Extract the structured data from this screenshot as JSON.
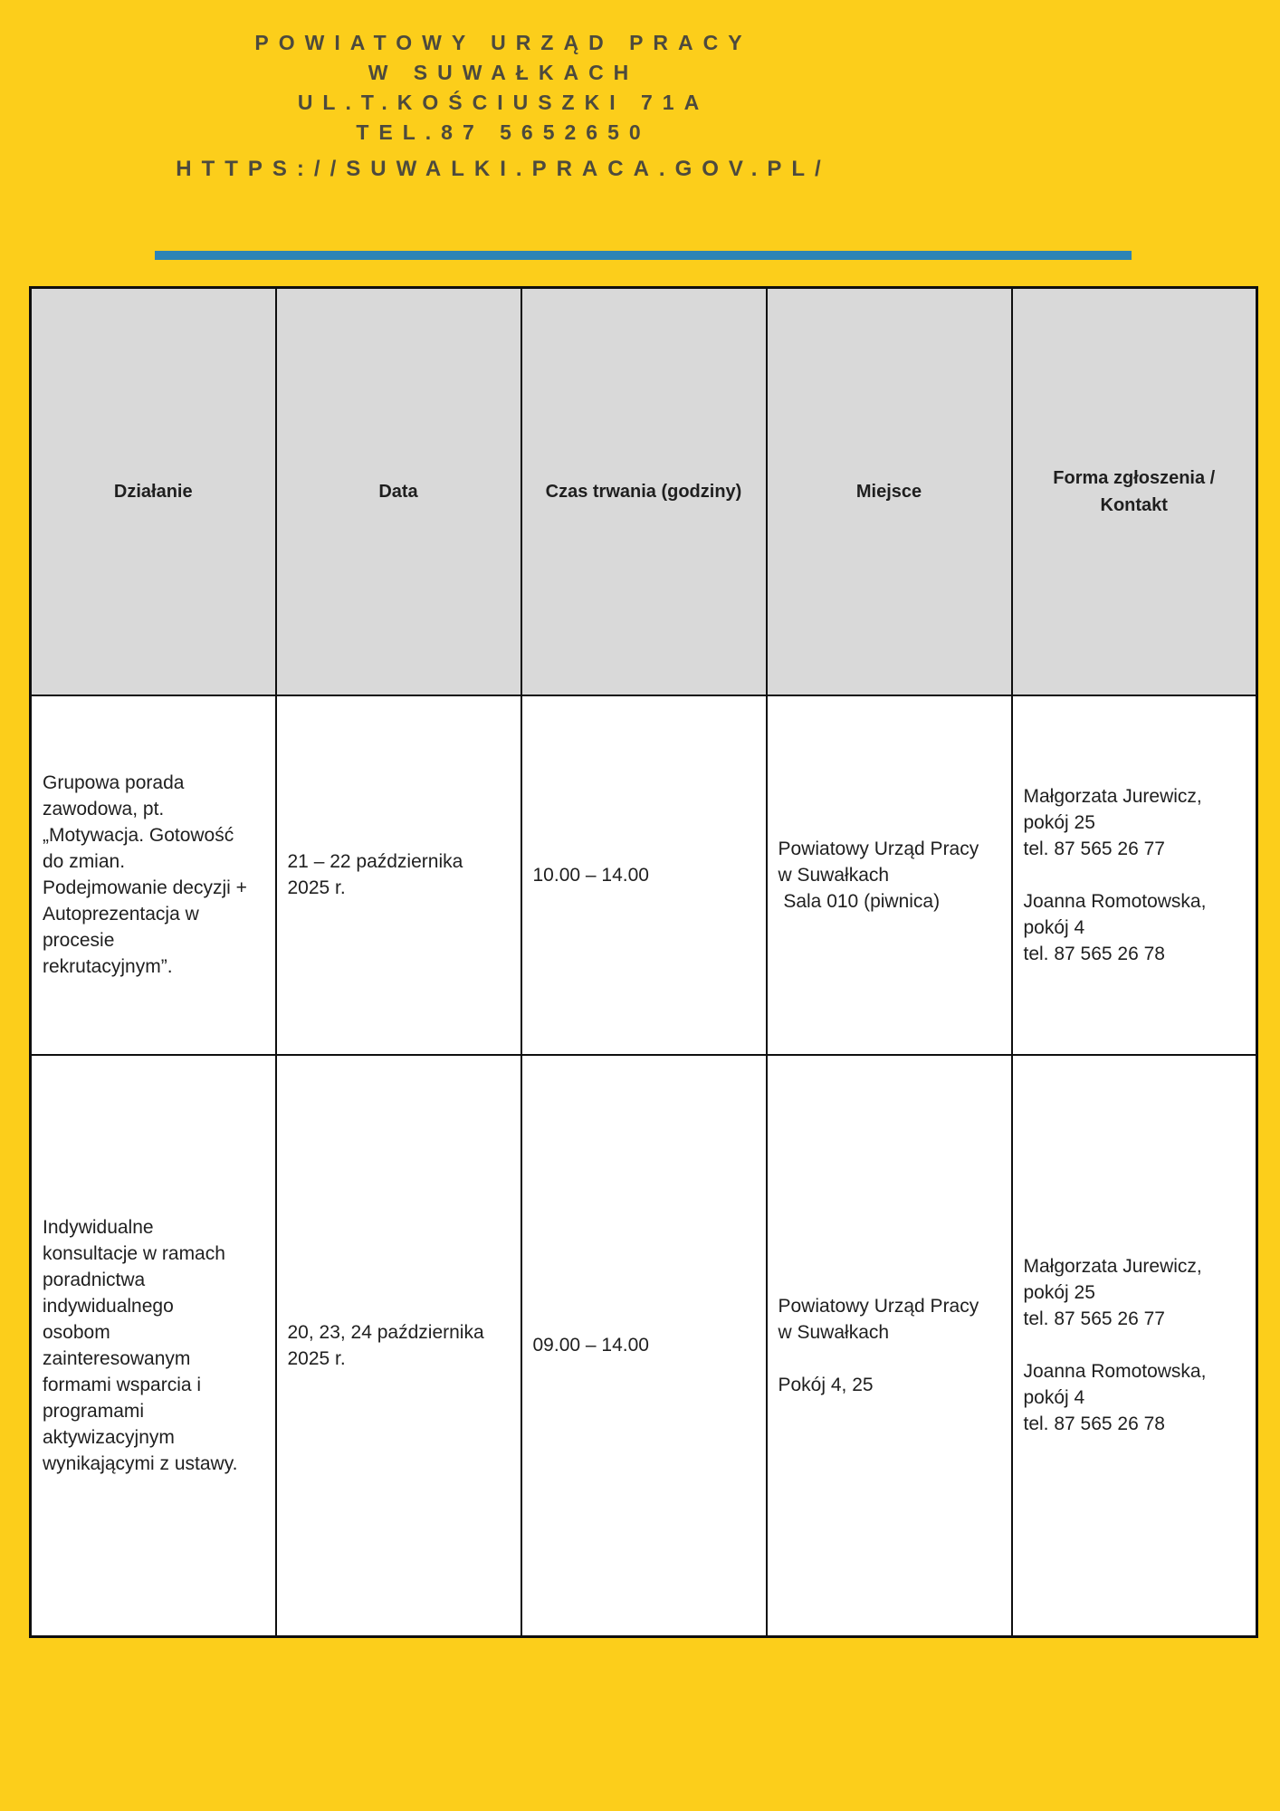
{
  "colors": {
    "background": "#fcce1b",
    "accent_bar": "#2d84b5",
    "table_header_bg": "#d9d9d9",
    "table_border": "#0f0f0f",
    "header_text": "#4d4a3d",
    "body_text": "#1f1f1f"
  },
  "header": {
    "org_line1": "POWIATOWY URZĄD PRACY",
    "org_line2": "W SUWAŁKACH",
    "address": "UL.T.KOŚCIUSZKI 71A",
    "phone": "TEL.87 5652650",
    "url": "HTTPS://SUWALKI.PRACA.GOV.PL/"
  },
  "table": {
    "headers": [
      "Działanie",
      "Data",
      "Czas trwania (godziny)",
      "Miejsce",
      "Forma zgłoszenia /\nKontakt"
    ],
    "rows": [
      {
        "action": "Grupowa porada\nzawodowa, pt.\n„Motywacja. Gotowość\ndo zmian.\nPodejmowanie decyzji +\nAutoprezentacja w\nprocesie\nrekrutacyjnym”.",
        "date": "21 – 22 października\n2025 r.",
        "duration": "10.00 – 14.00",
        "place": "Powiatowy Urząd Pracy\nw Suwałkach\n Sala 010 (piwnica)",
        "contact": "Małgorzata Jurewicz,\npokój 25\ntel. 87 565 26 77\n\nJoanna Romotowska,\npokój 4\ntel. 87 565 26 78"
      },
      {
        "action": "Indywidualne\nkonsultacje w ramach\nporadnictwa\nindywidualnego\nosobom\nzainteresowanym\nformami wsparcia i\nprogramami\naktywizacyjnym\nwynikającymi z ustawy.",
        "date": "20, 23, 24 października\n2025 r.",
        "duration": "09.00 – 14.00",
        "place": "Powiatowy Urząd Pracy\nw Suwałkach\n\nPokój 4, 25",
        "contact": "Małgorzata Jurewicz,\npokój 25\ntel. 87 565 26 77\n\nJoanna Romotowska,\npokój 4\ntel. 87 565 26 78"
      }
    ]
  }
}
